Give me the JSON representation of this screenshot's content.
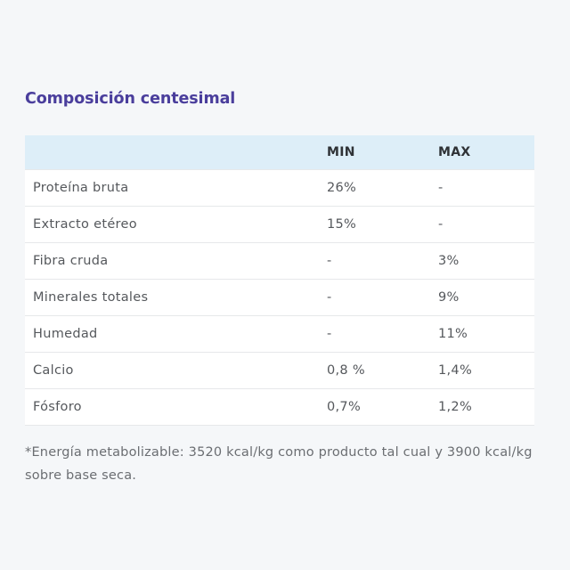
{
  "title": "Composición centesimal",
  "table": {
    "headers": {
      "name": "",
      "min": "MIN",
      "max": "MAX"
    },
    "rows": [
      {
        "name": "Proteína bruta",
        "min": "26%",
        "max": "-"
      },
      {
        "name": "Extracto etéreo",
        "min": "15%",
        "max": "-"
      },
      {
        "name": "Fibra cruda",
        "min": "-",
        "max": "3%"
      },
      {
        "name": "Minerales totales",
        "min": "-",
        "max": "9%"
      },
      {
        "name": "Humedad",
        "min": "-",
        "max": "11%"
      },
      {
        "name": "Calcio",
        "min": "0,8 %",
        "max": "1,4%"
      },
      {
        "name": "Fósforo",
        "min": "0,7%",
        "max": "1,2%"
      }
    ]
  },
  "note": "*Energía metabolizable: 3520 kcal/kg como producto tal cual y 3900 kcal/kg sobre base seca."
}
